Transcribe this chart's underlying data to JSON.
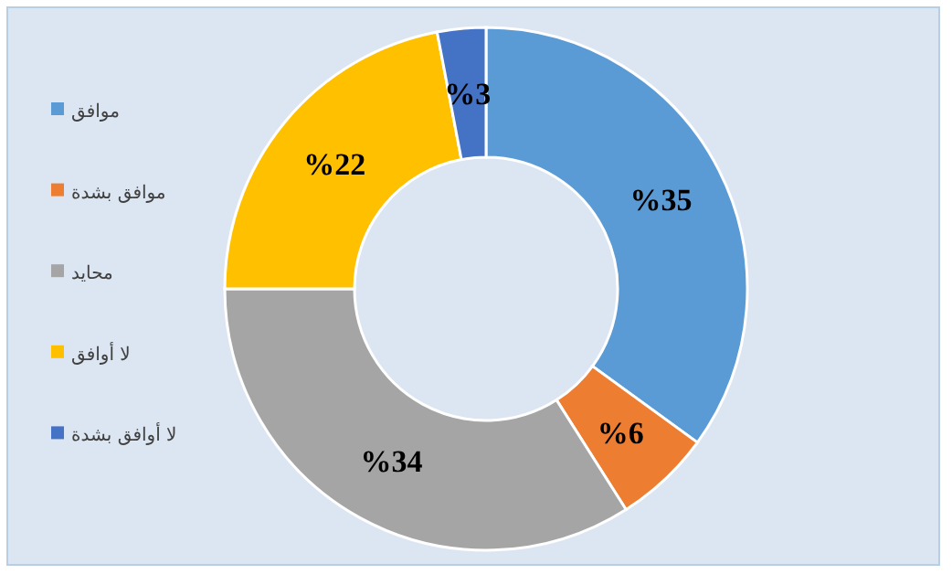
{
  "chart_data": {
    "type": "donut",
    "categories": [
      "موافق",
      "موافق بشدة",
      "محايد",
      "لا أوافق",
      "لا أوافق بشدة"
    ],
    "values": [
      35,
      6,
      34,
      22,
      3
    ],
    "colors": [
      "#5b9bd5",
      "#ed7d31",
      "#a5a5a5",
      "#ffc000",
      "#4472c4"
    ],
    "value_labels": [
      "%35",
      "%6",
      "%34",
      "%22",
      "%3"
    ],
    "legend": "left"
  }
}
